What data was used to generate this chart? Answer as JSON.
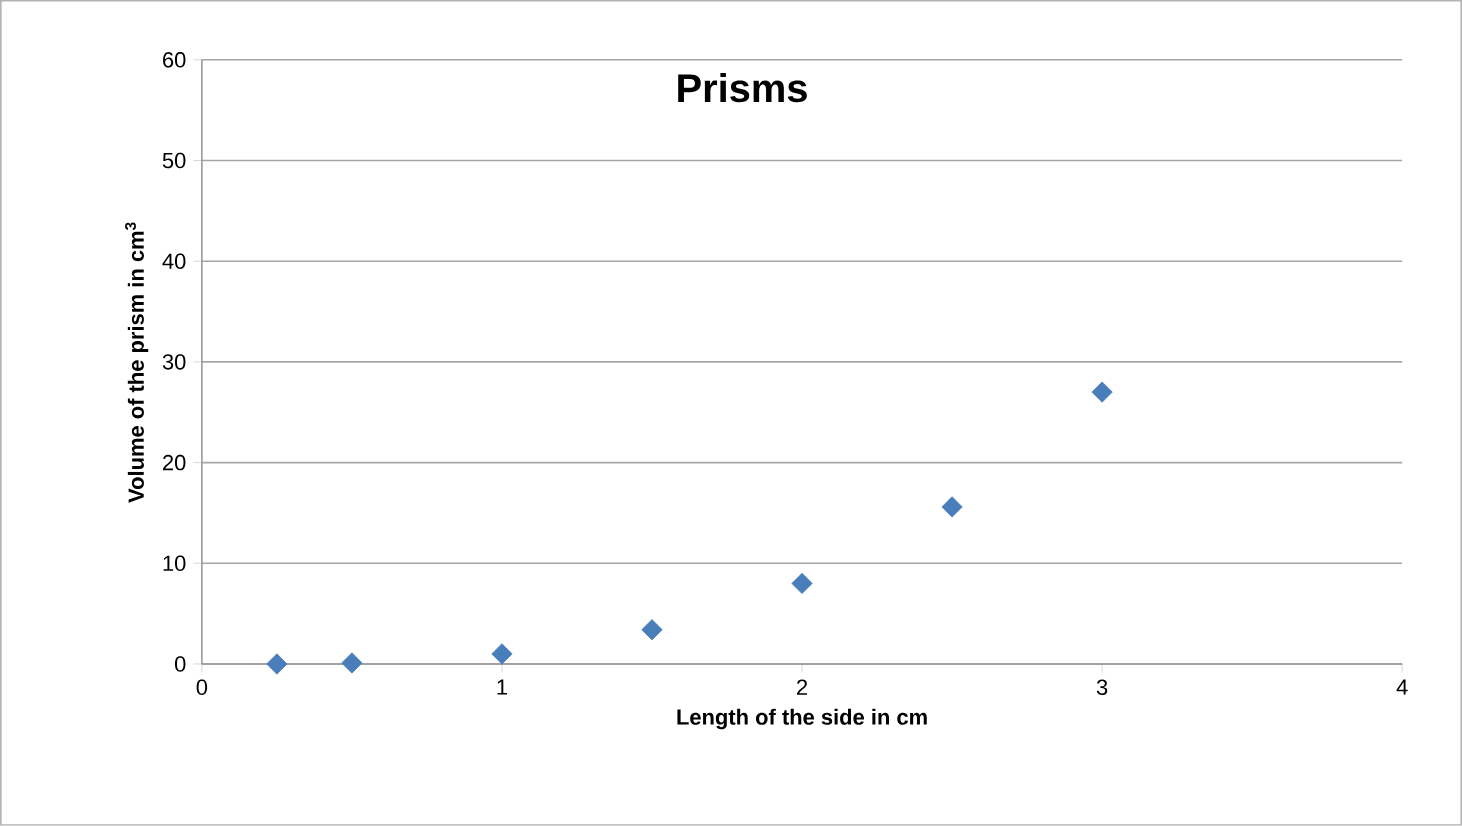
{
  "chart_data": {
    "type": "scatter",
    "title": "Prisms",
    "xlabel": "Length of the side in cm",
    "ylabel": "Volume of the prism in cm$^{3}$",
    "x": [
      0.25,
      0.5,
      1,
      1.5,
      2,
      2.5,
      3
    ],
    "series": [
      {
        "color": "#4a7ebb",
        "values": [
          0,
          0.1,
          1,
          3.4,
          8,
          15.6,
          27
        ]
      }
    ],
    "xlim": [
      0,
      4
    ],
    "ylim": [
      0,
      60
    ],
    "xticks": [
      0,
      1,
      2,
      3,
      4
    ],
    "yticks": [
      0,
      10,
      20,
      30,
      40,
      50,
      60
    ],
    "grid": "y",
    "marker": "diamond"
  }
}
